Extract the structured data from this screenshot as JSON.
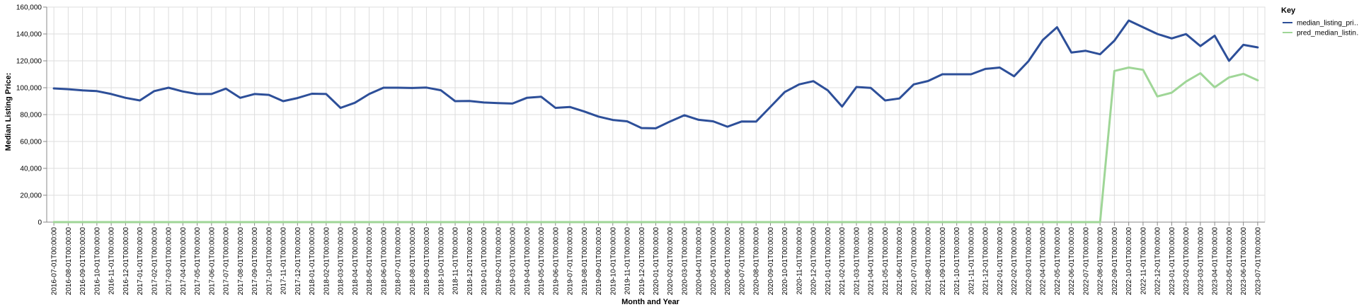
{
  "chart_data": {
    "type": "line",
    "title": "",
    "xlabel": "Month and Year",
    "ylabel": "Median Listing Price:",
    "ylim": [
      0,
      160000
    ],
    "yticks": [
      "0",
      "20,000",
      "40,000",
      "60,000",
      "80,000",
      "100,000",
      "120,000",
      "140,000",
      "160,000"
    ],
    "grid": true,
    "legend": {
      "title": "Key",
      "placement": "top-right"
    },
    "categories": [
      "2016-07-01T00:00:00",
      "2016-08-01T00:00:00",
      "2016-09-01T00:00:00",
      "2016-10-01T00:00:00",
      "2016-11-01T00:00:00",
      "2016-12-01T00:00:00",
      "2017-01-01T00:00:00",
      "2017-02-01T00:00:00",
      "2017-03-01T00:00:00",
      "2017-04-01T00:00:00",
      "2017-05-01T00:00:00",
      "2017-06-01T00:00:00",
      "2017-07-01T00:00:00",
      "2017-08-01T00:00:00",
      "2017-09-01T00:00:00",
      "2017-10-01T00:00:00",
      "2017-11-01T00:00:00",
      "2017-12-01T00:00:00",
      "2018-01-01T00:00:00",
      "2018-02-01T00:00:00",
      "2018-03-01T00:00:00",
      "2018-04-01T00:00:00",
      "2018-05-01T00:00:00",
      "2018-06-01T00:00:00",
      "2018-07-01T00:00:00",
      "2018-08-01T00:00:00",
      "2018-09-01T00:00:00",
      "2018-10-01T00:00:00",
      "2018-11-01T00:00:00",
      "2018-12-01T00:00:00",
      "2019-01-01T00:00:00",
      "2019-02-01T00:00:00",
      "2019-03-01T00:00:00",
      "2019-04-01T00:00:00",
      "2019-05-01T00:00:00",
      "2019-06-01T00:00:00",
      "2019-07-01T00:00:00",
      "2019-08-01T00:00:00",
      "2019-09-01T00:00:00",
      "2019-10-01T00:00:00",
      "2019-11-01T00:00:00",
      "2019-12-01T00:00:00",
      "2020-01-01T00:00:00",
      "2020-02-01T00:00:00",
      "2020-03-01T00:00:00",
      "2020-04-01T00:00:00",
      "2020-05-01T00:00:00",
      "2020-06-01T00:00:00",
      "2020-07-01T00:00:00",
      "2020-08-01T00:00:00",
      "2020-09-01T00:00:00",
      "2020-10-01T00:00:00",
      "2020-11-01T00:00:00",
      "2020-12-01T00:00:00",
      "2021-01-01T00:00:00",
      "2021-02-01T00:00:00",
      "2021-03-01T00:00:00",
      "2021-04-01T00:00:00",
      "2021-05-01T00:00:00",
      "2021-06-01T00:00:00",
      "2021-07-01T00:00:00",
      "2021-08-01T00:00:00",
      "2021-09-01T00:00:00",
      "2021-10-01T00:00:00",
      "2021-11-01T00:00:00",
      "2021-12-01T00:00:00",
      "2022-01-01T00:00:00",
      "2022-02-01T00:00:00",
      "2022-03-01T00:00:00",
      "2022-04-01T00:00:00",
      "2022-05-01T00:00:00",
      "2022-06-01T00:00:00",
      "2022-07-01T00:00:00",
      "2022-08-01T00:00:00",
      "2022-09-01T00:00:00",
      "2022-10-01T00:00:00",
      "2022-11-01T00:00:00",
      "2022-12-01T00:00:00",
      "2023-01-01T00:00:00",
      "2023-02-01T00:00:00",
      "2023-03-01T00:00:00",
      "2023-04-01T00:00:00",
      "2023-05-01T00:00:00",
      "2023-06-01T00:00:00",
      "2023-07-01T00:00:00"
    ],
    "series": [
      {
        "name": "median_listing_pri…",
        "color": "#2d4f99",
        "values": [
          99500,
          98900,
          98000,
          97500,
          95300,
          92500,
          90500,
          97500,
          100000,
          97200,
          95300,
          95300,
          99300,
          92500,
          95300,
          94700,
          90000,
          92300,
          95500,
          95300,
          85000,
          88800,
          95300,
          100000,
          100000,
          99800,
          100100,
          98100,
          90000,
          90100,
          89000,
          88500,
          88200,
          92500,
          93300,
          85000,
          85700,
          82300,
          78500,
          76000,
          75000,
          70000,
          69800,
          74900,
          79500,
          76100,
          75000,
          71000,
          74900,
          74800,
          85800,
          96800,
          102500,
          104900,
          98000,
          86000,
          100500,
          99900,
          90500,
          92000,
          102500,
          105000,
          110000,
          110000,
          110000,
          114000,
          115000,
          108500,
          119700,
          135500,
          145000,
          126200,
          127500,
          124900,
          135000,
          150000,
          145000,
          140000,
          136700,
          139900,
          131000,
          138700,
          120000,
          131900,
          130000
        ]
      },
      {
        "name": "pred_median_listin…",
        "color": "#9fd697",
        "values": [
          0,
          0,
          0,
          0,
          0,
          0,
          0,
          0,
          0,
          0,
          0,
          0,
          0,
          0,
          0,
          0,
          0,
          0,
          0,
          0,
          0,
          0,
          0,
          0,
          0,
          0,
          0,
          0,
          0,
          0,
          0,
          0,
          0,
          0,
          0,
          0,
          0,
          0,
          0,
          0,
          0,
          0,
          0,
          0,
          0,
          0,
          0,
          0,
          0,
          0,
          0,
          0,
          0,
          0,
          0,
          0,
          0,
          0,
          0,
          0,
          0,
          0,
          0,
          0,
          0,
          0,
          0,
          0,
          0,
          0,
          0,
          0,
          0,
          0,
          112500,
          115000,
          113300,
          93500,
          96300,
          104600,
          110800,
          100300,
          107700,
          110300,
          105500
        ]
      }
    ]
  }
}
